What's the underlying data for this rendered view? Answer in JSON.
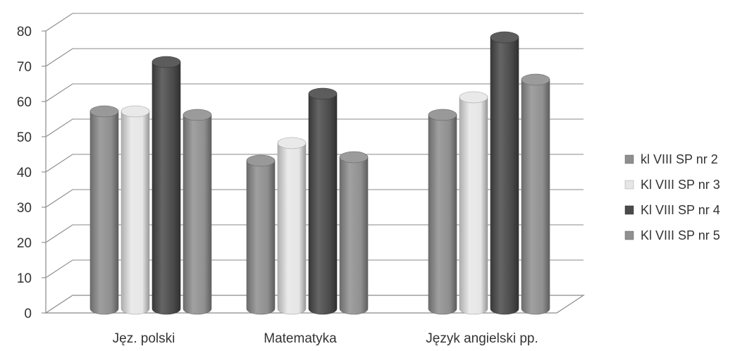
{
  "chart_data": {
    "type": "bar",
    "categories": [
      "Jęz. polski",
      "Matematyka",
      "Język angielski pp."
    ],
    "series": [
      {
        "name": "kl VIII SP nr 2",
        "values": [
          56,
          42,
          55
        ],
        "color": "#8e8e8e"
      },
      {
        "name": "Kl VIII SP nr 3",
        "values": [
          56,
          47,
          60
        ],
        "color": "#e6e6e6"
      },
      {
        "name": "Kl VIII SP nr 4",
        "values": [
          70,
          61,
          77
        ],
        "color": "#4a4a4a"
      },
      {
        "name": "Kl VIII SP nr 5",
        "values": [
          55,
          43,
          65
        ],
        "color": "#909090"
      }
    ],
    "ylim": [
      0,
      80
    ],
    "yticks": [
      0,
      10,
      20,
      30,
      40,
      50,
      60,
      70,
      80
    ],
    "grid": true,
    "legend_position": "right",
    "style": "3d-cylinder"
  }
}
